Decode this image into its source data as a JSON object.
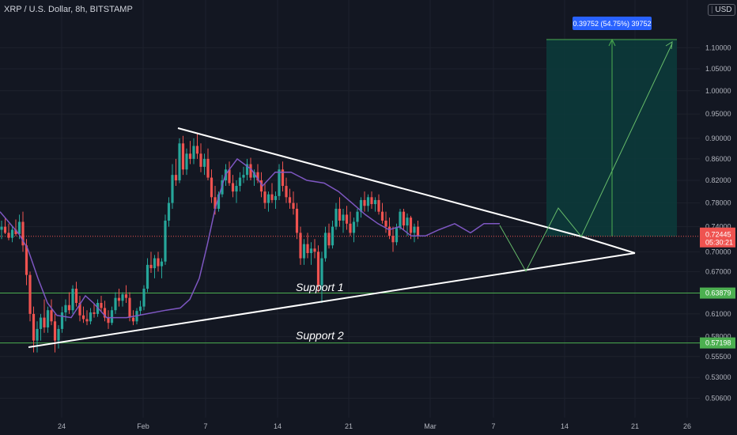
{
  "header": {
    "title": "XRP / U.S. Dollar, 8h, BITSTAMP",
    "currency": "USD"
  },
  "measure_label": "0.39752 (54.75%) 39752",
  "annotations": [
    "Support 1",
    "Support 2"
  ],
  "price_tag": {
    "price": "0.72445",
    "countdown": "05:30:21"
  },
  "colors": {
    "background": "#131722",
    "up": "#26a69a",
    "down": "#ef5350",
    "ma": "#7e57c2",
    "support": "#4caf50",
    "pattern": "#ffffff",
    "projection": "#66bb6a",
    "target_zone": "#0c3a3a",
    "measure_tag": "#2962ff",
    "text": "#b2b5be"
  },
  "chart_data": {
    "type": "candlestick",
    "title": "XRP / U.S. Dollar, 8h, BITSTAMP",
    "x_ticks": [
      "24",
      "Feb",
      "7",
      "14",
      "21",
      "Mar",
      "7",
      "14",
      "21",
      "26"
    ],
    "y_ticks": [
      "1.10000",
      "1.05000",
      "1.00000",
      "0.95000",
      "0.90000",
      "0.86000",
      "0.82000",
      "0.78000",
      "0.74000",
      "0.70000",
      "0.67000",
      "0.61000",
      "0.58000",
      "0.55500",
      "0.53000",
      "0.50600"
    ],
    "y_scale": "log",
    "ylim": [
      0.495,
      1.22
    ],
    "last_price": 0.72445,
    "support_levels": [
      {
        "label": "Support 1",
        "value": 0.63879
      },
      {
        "label": "Support 2",
        "value": 0.57198
      }
    ],
    "ma_line": [
      [
        0,
        0.765
      ],
      [
        24,
        0.728
      ],
      [
        35,
        0.705
      ],
      [
        48,
        0.66
      ],
      [
        60,
        0.625
      ],
      [
        72,
        0.608
      ],
      [
        90,
        0.605
      ],
      [
        108,
        0.635
      ],
      [
        118,
        0.625
      ],
      [
        135,
        0.605
      ],
      [
        160,
        0.605
      ],
      [
        185,
        0.61
      ],
      [
        210,
        0.615
      ],
      [
        228,
        0.618
      ],
      [
        240,
        0.63
      ],
      [
        252,
        0.66
      ],
      [
        262,
        0.71
      ],
      [
        272,
        0.77
      ],
      [
        285,
        0.83
      ],
      [
        300,
        0.86
      ],
      [
        318,
        0.84
      ],
      [
        332,
        0.81
      ],
      [
        348,
        0.835
      ],
      [
        368,
        0.835
      ],
      [
        388,
        0.82
      ],
      [
        410,
        0.815
      ],
      [
        428,
        0.8
      ],
      [
        445,
        0.78
      ],
      [
        462,
        0.76
      ],
      [
        478,
        0.745
      ],
      [
        492,
        0.735
      ],
      [
        505,
        0.74
      ],
      [
        520,
        0.725
      ],
      [
        538,
        0.725
      ],
      [
        555,
        0.735
      ],
      [
        575,
        0.745
      ],
      [
        595,
        0.73
      ],
      [
        612,
        0.745
      ],
      [
        632,
        0.745
      ]
    ],
    "candles": [
      {
        "o": 0.735,
        "h": 0.75,
        "l": 0.72,
        "c": 0.74
      },
      {
        "o": 0.74,
        "h": 0.755,
        "l": 0.728,
        "c": 0.73
      },
      {
        "o": 0.73,
        "h": 0.745,
        "l": 0.718,
        "c": 0.722
      },
      {
        "o": 0.722,
        "h": 0.74,
        "l": 0.715,
        "c": 0.735
      },
      {
        "o": 0.735,
        "h": 0.752,
        "l": 0.725,
        "c": 0.728
      },
      {
        "o": 0.728,
        "h": 0.76,
        "l": 0.72,
        "c": 0.748
      },
      {
        "o": 0.748,
        "h": 0.765,
        "l": 0.7,
        "c": 0.71
      },
      {
        "o": 0.71,
        "h": 0.72,
        "l": 0.65,
        "c": 0.665
      },
      {
        "o": 0.665,
        "h": 0.67,
        "l": 0.6,
        "c": 0.61
      },
      {
        "o": 0.61,
        "h": 0.62,
        "l": 0.56,
        "c": 0.575
      },
      {
        "o": 0.575,
        "h": 0.6,
        "l": 0.56,
        "c": 0.59
      },
      {
        "o": 0.59,
        "h": 0.61,
        "l": 0.575,
        "c": 0.605
      },
      {
        "o": 0.605,
        "h": 0.63,
        "l": 0.585,
        "c": 0.592
      },
      {
        "o": 0.592,
        "h": 0.62,
        "l": 0.585,
        "c": 0.615
      },
      {
        "o": 0.615,
        "h": 0.63,
        "l": 0.595,
        "c": 0.6
      },
      {
        "o": 0.6,
        "h": 0.61,
        "l": 0.56,
        "c": 0.575
      },
      {
        "o": 0.575,
        "h": 0.595,
        "l": 0.565,
        "c": 0.59
      },
      {
        "o": 0.59,
        "h": 0.62,
        "l": 0.585,
        "c": 0.612
      },
      {
        "o": 0.612,
        "h": 0.63,
        "l": 0.6,
        "c": 0.622
      },
      {
        "o": 0.622,
        "h": 0.64,
        "l": 0.61,
        "c": 0.615
      },
      {
        "o": 0.615,
        "h": 0.65,
        "l": 0.61,
        "c": 0.645
      },
      {
        "o": 0.645,
        "h": 0.655,
        "l": 0.62,
        "c": 0.625
      },
      {
        "o": 0.625,
        "h": 0.635,
        "l": 0.6,
        "c": 0.608
      },
      {
        "o": 0.608,
        "h": 0.62,
        "l": 0.598,
        "c": 0.603
      },
      {
        "o": 0.603,
        "h": 0.615,
        "l": 0.595,
        "c": 0.6
      },
      {
        "o": 0.6,
        "h": 0.618,
        "l": 0.596,
        "c": 0.612
      },
      {
        "o": 0.612,
        "h": 0.625,
        "l": 0.605,
        "c": 0.61
      },
      {
        "o": 0.61,
        "h": 0.63,
        "l": 0.606,
        "c": 0.625
      },
      {
        "o": 0.625,
        "h": 0.635,
        "l": 0.612,
        "c": 0.618
      },
      {
        "o": 0.618,
        "h": 0.628,
        "l": 0.6,
        "c": 0.605
      },
      {
        "o": 0.605,
        "h": 0.615,
        "l": 0.59,
        "c": 0.598
      },
      {
        "o": 0.598,
        "h": 0.62,
        "l": 0.595,
        "c": 0.615
      },
      {
        "o": 0.615,
        "h": 0.64,
        "l": 0.61,
        "c": 0.632
      },
      {
        "o": 0.632,
        "h": 0.645,
        "l": 0.62,
        "c": 0.628
      },
      {
        "o": 0.628,
        "h": 0.64,
        "l": 0.62,
        "c": 0.637
      },
      {
        "o": 0.637,
        "h": 0.65,
        "l": 0.625,
        "c": 0.632
      },
      {
        "o": 0.632,
        "h": 0.64,
        "l": 0.6,
        "c": 0.605
      },
      {
        "o": 0.605,
        "h": 0.615,
        "l": 0.595,
        "c": 0.6
      },
      {
        "o": 0.6,
        "h": 0.618,
        "l": 0.596,
        "c": 0.614
      },
      {
        "o": 0.614,
        "h": 0.628,
        "l": 0.608,
        "c": 0.62
      },
      {
        "o": 0.62,
        "h": 0.65,
        "l": 0.615,
        "c": 0.645
      },
      {
        "o": 0.645,
        "h": 0.69,
        "l": 0.64,
        "c": 0.68
      },
      {
        "o": 0.68,
        "h": 0.7,
        "l": 0.668,
        "c": 0.675
      },
      {
        "o": 0.675,
        "h": 0.695,
        "l": 0.66,
        "c": 0.69
      },
      {
        "o": 0.69,
        "h": 0.7,
        "l": 0.67,
        "c": 0.678
      },
      {
        "o": 0.678,
        "h": 0.69,
        "l": 0.66,
        "c": 0.685
      },
      {
        "o": 0.685,
        "h": 0.76,
        "l": 0.68,
        "c": 0.75
      },
      {
        "o": 0.75,
        "h": 0.79,
        "l": 0.74,
        "c": 0.78
      },
      {
        "o": 0.78,
        "h": 0.85,
        "l": 0.77,
        "c": 0.83
      },
      {
        "o": 0.83,
        "h": 0.86,
        "l": 0.81,
        "c": 0.82
      },
      {
        "o": 0.82,
        "h": 0.9,
        "l": 0.815,
        "c": 0.89
      },
      {
        "o": 0.89,
        "h": 0.905,
        "l": 0.83,
        "c": 0.84
      },
      {
        "o": 0.84,
        "h": 0.88,
        "l": 0.83,
        "c": 0.87
      },
      {
        "o": 0.87,
        "h": 0.895,
        "l": 0.85,
        "c": 0.86
      },
      {
        "o": 0.86,
        "h": 0.9,
        "l": 0.85,
        "c": 0.885
      },
      {
        "o": 0.885,
        "h": 0.91,
        "l": 0.86,
        "c": 0.87
      },
      {
        "o": 0.87,
        "h": 0.89,
        "l": 0.835,
        "c": 0.845
      },
      {
        "o": 0.845,
        "h": 0.87,
        "l": 0.83,
        "c": 0.86
      },
      {
        "o": 0.86,
        "h": 0.88,
        "l": 0.82,
        "c": 0.825
      },
      {
        "o": 0.825,
        "h": 0.84,
        "l": 0.78,
        "c": 0.79
      },
      {
        "o": 0.79,
        "h": 0.81,
        "l": 0.76,
        "c": 0.77
      },
      {
        "o": 0.77,
        "h": 0.8,
        "l": 0.765,
        "c": 0.795
      },
      {
        "o": 0.795,
        "h": 0.83,
        "l": 0.79,
        "c": 0.82
      },
      {
        "o": 0.82,
        "h": 0.85,
        "l": 0.81,
        "c": 0.84
      },
      {
        "o": 0.84,
        "h": 0.855,
        "l": 0.81,
        "c": 0.815
      },
      {
        "o": 0.815,
        "h": 0.83,
        "l": 0.79,
        "c": 0.8
      },
      {
        "o": 0.8,
        "h": 0.82,
        "l": 0.78,
        "c": 0.81
      },
      {
        "o": 0.81,
        "h": 0.835,
        "l": 0.8,
        "c": 0.825
      },
      {
        "o": 0.825,
        "h": 0.845,
        "l": 0.815,
        "c": 0.83
      },
      {
        "o": 0.83,
        "h": 0.86,
        "l": 0.82,
        "c": 0.85
      },
      {
        "o": 0.85,
        "h": 0.862,
        "l": 0.82,
        "c": 0.825
      },
      {
        "o": 0.825,
        "h": 0.84,
        "l": 0.81,
        "c": 0.835
      },
      {
        "o": 0.835,
        "h": 0.85,
        "l": 0.815,
        "c": 0.82
      },
      {
        "o": 0.82,
        "h": 0.835,
        "l": 0.79,
        "c": 0.8
      },
      {
        "o": 0.8,
        "h": 0.815,
        "l": 0.77,
        "c": 0.78
      },
      {
        "o": 0.78,
        "h": 0.8,
        "l": 0.765,
        "c": 0.795
      },
      {
        "o": 0.795,
        "h": 0.815,
        "l": 0.78,
        "c": 0.785
      },
      {
        "o": 0.785,
        "h": 0.8,
        "l": 0.77,
        "c": 0.792
      },
      {
        "o": 0.792,
        "h": 0.85,
        "l": 0.785,
        "c": 0.84
      },
      {
        "o": 0.84,
        "h": 0.855,
        "l": 0.8,
        "c": 0.81
      },
      {
        "o": 0.81,
        "h": 0.825,
        "l": 0.78,
        "c": 0.79
      },
      {
        "o": 0.79,
        "h": 0.805,
        "l": 0.77,
        "c": 0.78
      },
      {
        "o": 0.78,
        "h": 0.8,
        "l": 0.76,
        "c": 0.77
      },
      {
        "o": 0.77,
        "h": 0.78,
        "l": 0.72,
        "c": 0.73
      },
      {
        "o": 0.73,
        "h": 0.74,
        "l": 0.68,
        "c": 0.69
      },
      {
        "o": 0.69,
        "h": 0.72,
        "l": 0.68,
        "c": 0.712
      },
      {
        "o": 0.712,
        "h": 0.73,
        "l": 0.69,
        "c": 0.698
      },
      {
        "o": 0.698,
        "h": 0.715,
        "l": 0.68,
        "c": 0.705
      },
      {
        "o": 0.705,
        "h": 0.72,
        "l": 0.69,
        "c": 0.7
      },
      {
        "o": 0.7,
        "h": 0.71,
        "l": 0.64,
        "c": 0.65
      },
      {
        "o": 0.65,
        "h": 0.7,
        "l": 0.625,
        "c": 0.69
      },
      {
        "o": 0.69,
        "h": 0.74,
        "l": 0.685,
        "c": 0.73
      },
      {
        "o": 0.73,
        "h": 0.745,
        "l": 0.705,
        "c": 0.71
      },
      {
        "o": 0.71,
        "h": 0.75,
        "l": 0.705,
        "c": 0.74
      },
      {
        "o": 0.74,
        "h": 0.78,
        "l": 0.735,
        "c": 0.77
      },
      {
        "o": 0.77,
        "h": 0.79,
        "l": 0.74,
        "c": 0.75
      },
      {
        "o": 0.75,
        "h": 0.77,
        "l": 0.73,
        "c": 0.76
      },
      {
        "o": 0.76,
        "h": 0.775,
        "l": 0.735,
        "c": 0.745
      },
      {
        "o": 0.745,
        "h": 0.765,
        "l": 0.725,
        "c": 0.73
      },
      {
        "o": 0.73,
        "h": 0.755,
        "l": 0.715,
        "c": 0.748
      },
      {
        "o": 0.748,
        "h": 0.77,
        "l": 0.74,
        "c": 0.765
      },
      {
        "o": 0.765,
        "h": 0.79,
        "l": 0.755,
        "c": 0.785
      },
      {
        "o": 0.785,
        "h": 0.8,
        "l": 0.765,
        "c": 0.775
      },
      {
        "o": 0.775,
        "h": 0.795,
        "l": 0.765,
        "c": 0.79
      },
      {
        "o": 0.79,
        "h": 0.8,
        "l": 0.77,
        "c": 0.778
      },
      {
        "o": 0.778,
        "h": 0.79,
        "l": 0.765,
        "c": 0.785
      },
      {
        "o": 0.785,
        "h": 0.795,
        "l": 0.76,
        "c": 0.765
      },
      {
        "o": 0.765,
        "h": 0.78,
        "l": 0.745,
        "c": 0.75
      },
      {
        "o": 0.75,
        "h": 0.765,
        "l": 0.73,
        "c": 0.74
      },
      {
        "o": 0.74,
        "h": 0.755,
        "l": 0.72,
        "c": 0.725
      },
      {
        "o": 0.725,
        "h": 0.74,
        "l": 0.7,
        "c": 0.715
      },
      {
        "o": 0.715,
        "h": 0.745,
        "l": 0.71,
        "c": 0.738
      },
      {
        "o": 0.738,
        "h": 0.77,
        "l": 0.735,
        "c": 0.765
      },
      {
        "o": 0.765,
        "h": 0.77,
        "l": 0.735,
        "c": 0.742
      },
      {
        "o": 0.742,
        "h": 0.762,
        "l": 0.725,
        "c": 0.755
      },
      {
        "o": 0.755,
        "h": 0.758,
        "l": 0.72,
        "c": 0.73
      },
      {
        "o": 0.73,
        "h": 0.745,
        "l": 0.715,
        "c": 0.74
      },
      {
        "o": 0.74,
        "h": 0.75,
        "l": 0.72,
        "c": 0.72445
      }
    ]
  }
}
